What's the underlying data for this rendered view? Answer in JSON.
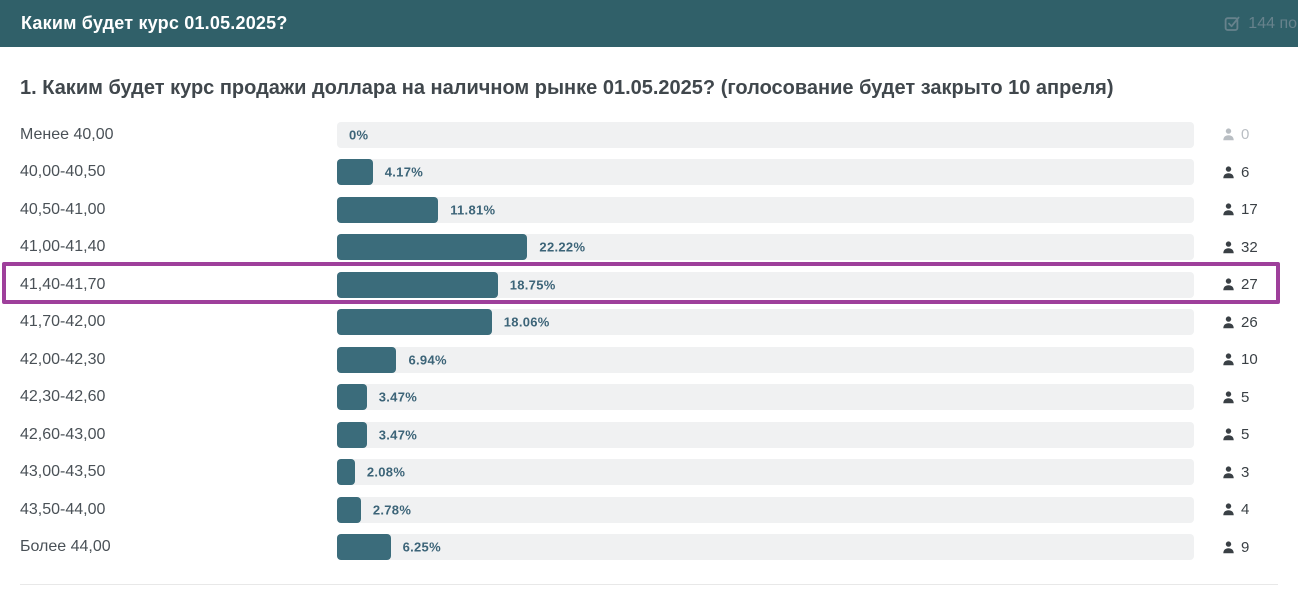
{
  "header": {
    "title": "Каким будет курс 01.05.2025?",
    "votes_summary": "144 по",
    "bg_color": "#306069"
  },
  "question": {
    "title": "1. Каким будет курс продажи доллара на наличном рынке 01.05.2025? (голосование будет закрыто 10 апреля)"
  },
  "poll": {
    "total_votes": 144,
    "highlighted_index": 4,
    "options": [
      {
        "label": "Менее 40,00",
        "percent": 0,
        "percent_label": "0%",
        "votes": 0
      },
      {
        "label": "40,00-40,50",
        "percent": 4.17,
        "percent_label": "4.17%",
        "votes": 6
      },
      {
        "label": "40,50-41,00",
        "percent": 11.81,
        "percent_label": "11.81%",
        "votes": 17
      },
      {
        "label": "41,00-41,40",
        "percent": 22.22,
        "percent_label": "22.22%",
        "votes": 32
      },
      {
        "label": "41,40-41,70",
        "percent": 18.75,
        "percent_label": "18.75%",
        "votes": 27
      },
      {
        "label": "41,70-42,00",
        "percent": 18.06,
        "percent_label": "18.06%",
        "votes": 26
      },
      {
        "label": "42,00-42,30",
        "percent": 6.94,
        "percent_label": "6.94%",
        "votes": 10
      },
      {
        "label": "42,30-42,60",
        "percent": 3.47,
        "percent_label": "3.47%",
        "votes": 5
      },
      {
        "label": "42,60-43,00",
        "percent": 3.47,
        "percent_label": "3.47%",
        "votes": 5
      },
      {
        "label": "43,00-43,50",
        "percent": 2.08,
        "percent_label": "2.08%",
        "votes": 3
      },
      {
        "label": "43,50-44,00",
        "percent": 2.78,
        "percent_label": "2.78%",
        "votes": 4
      },
      {
        "label": "Более 44,00",
        "percent": 6.25,
        "percent_label": "6.25%",
        "votes": 9
      }
    ]
  },
  "chart_data": {
    "type": "bar",
    "orientation": "horizontal",
    "title": "1. Каким будет курс продажи доллара на наличном рынке 01.05.2025? (голосование будет закрыто 10 апреля)",
    "categories": [
      "Менее 40,00",
      "40,00-40,50",
      "40,50-41,00",
      "41,00-41,40",
      "41,40-41,70",
      "41,70-42,00",
      "42,00-42,30",
      "42,30-42,60",
      "42,60-43,00",
      "43,00-43,50",
      "43,50-44,00",
      "Более 44,00"
    ],
    "series": [
      {
        "name": "percent",
        "values": [
          0,
          4.17,
          11.81,
          22.22,
          18.75,
          18.06,
          6.94,
          3.47,
          3.47,
          2.08,
          2.78,
          6.25
        ]
      },
      {
        "name": "votes",
        "values": [
          0,
          6,
          17,
          32,
          27,
          26,
          10,
          5,
          5,
          3,
          4,
          9
        ]
      }
    ],
    "xlim": [
      0,
      100
    ],
    "highlighted_category": "41,40-41,70",
    "total_votes": 144
  },
  "colors": {
    "header_bg": "#306069",
    "bar_fill": "#3b6c7b",
    "bar_track": "#f0f1f2",
    "percent_text": "#3c6478",
    "highlight_border": "#9e3f9b",
    "zero_row_text": "#b9bec3"
  }
}
